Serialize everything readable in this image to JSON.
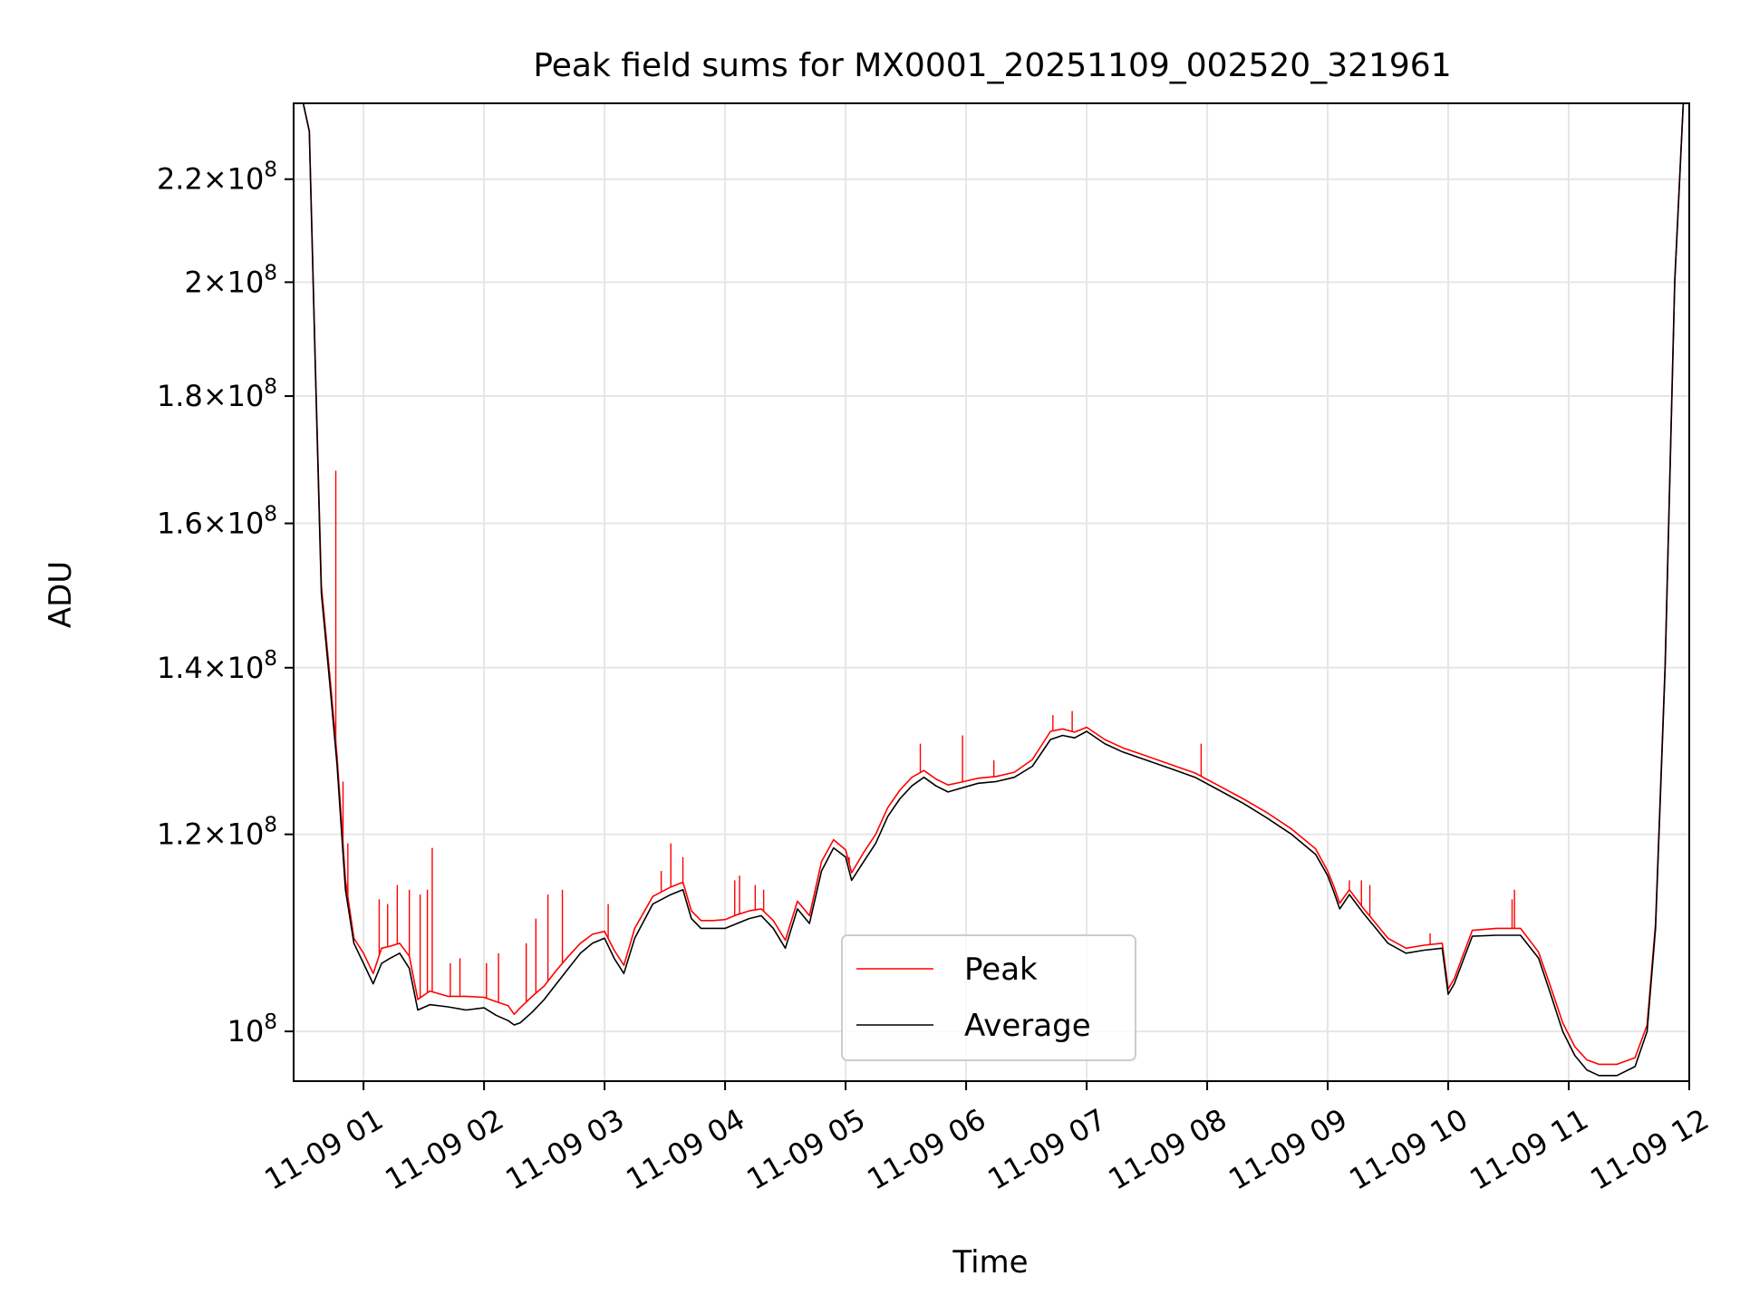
{
  "chart_data": {
    "type": "line",
    "title": "Peak field sums for MX0001_20251109_002520_321961",
    "xlabel": "Time",
    "ylabel": "ADU",
    "x_unit": "hours on 2025-11-09",
    "xlim": [
      0.42,
      12.0
    ],
    "ylim": [
      95500000,
      236000000
    ],
    "yscale": "log",
    "grid": true,
    "legend_position": "lower center",
    "x_ticks": [
      {
        "value": 1,
        "label": "11-09 01"
      },
      {
        "value": 2,
        "label": "11-09 02"
      },
      {
        "value": 3,
        "label": "11-09 03"
      },
      {
        "value": 4,
        "label": "11-09 04"
      },
      {
        "value": 5,
        "label": "11-09 05"
      },
      {
        "value": 6,
        "label": "11-09 06"
      },
      {
        "value": 7,
        "label": "11-09 07"
      },
      {
        "value": 8,
        "label": "11-09 08"
      },
      {
        "value": 9,
        "label": "11-09 09"
      },
      {
        "value": 10,
        "label": "11-09 10"
      },
      {
        "value": 11,
        "label": "11-09 11"
      },
      {
        "value": 12,
        "label": "11-09 12"
      }
    ],
    "y_ticks": [
      {
        "value": 100000000,
        "mantissa": "",
        "exponent": "8"
      },
      {
        "value": 120000000,
        "mantissa": "1.2",
        "exponent": "8"
      },
      {
        "value": 140000000,
        "mantissa": "1.4",
        "exponent": "8"
      },
      {
        "value": 160000000,
        "mantissa": "1.6",
        "exponent": "8"
      },
      {
        "value": 180000000,
        "mantissa": "1.8",
        "exponent": "8"
      },
      {
        "value": 200000000,
        "mantissa": "2",
        "exponent": "8"
      },
      {
        "value": 220000000,
        "mantissa": "2.2",
        "exponent": "8"
      }
    ],
    "tick_base": "10",
    "tick_times": "×",
    "series": [
      {
        "name": "Average",
        "color": "#000000",
        "points": [
          [
            0.42,
            236000000
          ],
          [
            0.5,
            236000000
          ],
          [
            0.55,
            230000000
          ],
          [
            0.6,
            185000000
          ],
          [
            0.65,
            150000000
          ],
          [
            0.72,
            138000000
          ],
          [
            0.78,
            128000000
          ],
          [
            0.85,
            114000000
          ],
          [
            0.92,
            108500000
          ],
          [
            1.0,
            106500000
          ],
          [
            1.08,
            104500000
          ],
          [
            1.15,
            106500000
          ],
          [
            1.22,
            107000000
          ],
          [
            1.3,
            107500000
          ],
          [
            1.38,
            106000000
          ],
          [
            1.45,
            102000000
          ],
          [
            1.55,
            102500000
          ],
          [
            1.7,
            102300000
          ],
          [
            1.85,
            102000000
          ],
          [
            2.0,
            102200000
          ],
          [
            2.1,
            101500000
          ],
          [
            2.2,
            101000000
          ],
          [
            2.25,
            100600000
          ],
          [
            2.3,
            100800000
          ],
          [
            2.4,
            101800000
          ],
          [
            2.5,
            103000000
          ],
          [
            2.6,
            104500000
          ],
          [
            2.7,
            106000000
          ],
          [
            2.8,
            107500000
          ],
          [
            2.9,
            108500000
          ],
          [
            3.0,
            109000000
          ],
          [
            3.08,
            107000000
          ],
          [
            3.16,
            105500000
          ],
          [
            3.25,
            109000000
          ],
          [
            3.4,
            112500000
          ],
          [
            3.55,
            113500000
          ],
          [
            3.65,
            114000000
          ],
          [
            3.72,
            111000000
          ],
          [
            3.8,
            110000000
          ],
          [
            3.9,
            110000000
          ],
          [
            4.0,
            110000000
          ],
          [
            4.1,
            110500000
          ],
          [
            4.2,
            111000000
          ],
          [
            4.3,
            111300000
          ],
          [
            4.4,
            110000000
          ],
          [
            4.5,
            108000000
          ],
          [
            4.6,
            112000000
          ],
          [
            4.7,
            110500000
          ],
          [
            4.8,
            116000000
          ],
          [
            4.9,
            118500000
          ],
          [
            5.0,
            117500000
          ],
          [
            5.05,
            115000000
          ],
          [
            5.15,
            117000000
          ],
          [
            5.25,
            119000000
          ],
          [
            5.35,
            122000000
          ],
          [
            5.45,
            124000000
          ],
          [
            5.55,
            125500000
          ],
          [
            5.65,
            126500000
          ],
          [
            5.75,
            125500000
          ],
          [
            5.85,
            124800000
          ],
          [
            5.95,
            125200000
          ],
          [
            6.1,
            125800000
          ],
          [
            6.25,
            126000000
          ],
          [
            6.4,
            126500000
          ],
          [
            6.55,
            127800000
          ],
          [
            6.7,
            131000000
          ],
          [
            6.8,
            131500000
          ],
          [
            6.9,
            131200000
          ],
          [
            7.0,
            132000000
          ],
          [
            7.15,
            130500000
          ],
          [
            7.3,
            129500000
          ],
          [
            7.5,
            128500000
          ],
          [
            7.7,
            127500000
          ],
          [
            7.9,
            126500000
          ],
          [
            8.1,
            125000000
          ],
          [
            8.3,
            123500000
          ],
          [
            8.5,
            121800000
          ],
          [
            8.7,
            120000000
          ],
          [
            8.9,
            117800000
          ],
          [
            9.0,
            115500000
          ],
          [
            9.05,
            113800000
          ],
          [
            9.1,
            112000000
          ],
          [
            9.18,
            113500000
          ],
          [
            9.3,
            111500000
          ],
          [
            9.4,
            110000000
          ],
          [
            9.5,
            108500000
          ],
          [
            9.65,
            107500000
          ],
          [
            9.8,
            107800000
          ],
          [
            9.95,
            108000000
          ],
          [
            10.0,
            103500000
          ],
          [
            10.05,
            104500000
          ],
          [
            10.2,
            109200000
          ],
          [
            10.4,
            109300000
          ],
          [
            10.6,
            109300000
          ],
          [
            10.75,
            107000000
          ],
          [
            10.85,
            103500000
          ],
          [
            10.95,
            100000000
          ],
          [
            11.05,
            97800000
          ],
          [
            11.15,
            96500000
          ],
          [
            11.25,
            96000000
          ],
          [
            11.4,
            96000000
          ],
          [
            11.55,
            96800000
          ],
          [
            11.65,
            100000000
          ],
          [
            11.72,
            110000000
          ],
          [
            11.8,
            140000000
          ],
          [
            11.88,
            200000000
          ],
          [
            11.95,
            236000000
          ],
          [
            12.0,
            236000000
          ]
        ]
      },
      {
        "name": "Peak",
        "color": "#ff0000",
        "points": [
          [
            0.42,
            236000000
          ],
          [
            0.5,
            236000000
          ],
          [
            0.55,
            230000000
          ],
          [
            0.6,
            186000000
          ],
          [
            0.65,
            151000000
          ],
          [
            0.72,
            139000000
          ],
          [
            0.78,
            129000000
          ],
          [
            0.85,
            115000000
          ],
          [
            0.92,
            109000000
          ],
          [
            1.0,
            107500000
          ],
          [
            1.08,
            105500000
          ],
          [
            1.15,
            108000000
          ],
          [
            1.22,
            108200000
          ],
          [
            1.3,
            108500000
          ],
          [
            1.38,
            107200000
          ],
          [
            1.45,
            103000000
          ],
          [
            1.55,
            103800000
          ],
          [
            1.7,
            103300000
          ],
          [
            1.85,
            103300000
          ],
          [
            2.0,
            103200000
          ],
          [
            2.1,
            102800000
          ],
          [
            2.2,
            102400000
          ],
          [
            2.25,
            101600000
          ],
          [
            2.3,
            102200000
          ],
          [
            2.4,
            103300000
          ],
          [
            2.5,
            104300000
          ],
          [
            2.6,
            105800000
          ],
          [
            2.7,
            107200000
          ],
          [
            2.8,
            108500000
          ],
          [
            2.9,
            109400000
          ],
          [
            3.0,
            109700000
          ],
          [
            3.08,
            107800000
          ],
          [
            3.16,
            106300000
          ],
          [
            3.25,
            110000000
          ],
          [
            3.4,
            113300000
          ],
          [
            3.55,
            114300000
          ],
          [
            3.65,
            114800000
          ],
          [
            3.72,
            111800000
          ],
          [
            3.8,
            110800000
          ],
          [
            3.9,
            110800000
          ],
          [
            4.0,
            110900000
          ],
          [
            4.1,
            111400000
          ],
          [
            4.2,
            111800000
          ],
          [
            4.3,
            112000000
          ],
          [
            4.4,
            110800000
          ],
          [
            4.5,
            108800000
          ],
          [
            4.6,
            112800000
          ],
          [
            4.7,
            111300000
          ],
          [
            4.8,
            117000000
          ],
          [
            4.9,
            119400000
          ],
          [
            5.0,
            118300000
          ],
          [
            5.05,
            115800000
          ],
          [
            5.15,
            118000000
          ],
          [
            5.25,
            120000000
          ],
          [
            5.35,
            123000000
          ],
          [
            5.45,
            125000000
          ],
          [
            5.55,
            126500000
          ],
          [
            5.65,
            127300000
          ],
          [
            5.75,
            126300000
          ],
          [
            5.85,
            125600000
          ],
          [
            5.95,
            125900000
          ],
          [
            6.1,
            126400000
          ],
          [
            6.25,
            126600000
          ],
          [
            6.4,
            127100000
          ],
          [
            6.55,
            128600000
          ],
          [
            6.7,
            132000000
          ],
          [
            6.8,
            132300000
          ],
          [
            6.9,
            131900000
          ],
          [
            7.0,
            132500000
          ],
          [
            7.15,
            131000000
          ],
          [
            7.3,
            130000000
          ],
          [
            7.5,
            129000000
          ],
          [
            7.7,
            128000000
          ],
          [
            7.9,
            127000000
          ],
          [
            8.1,
            125500000
          ],
          [
            8.3,
            124000000
          ],
          [
            8.5,
            122400000
          ],
          [
            8.7,
            120600000
          ],
          [
            8.9,
            118400000
          ],
          [
            9.0,
            116000000
          ],
          [
            9.05,
            114400000
          ],
          [
            9.1,
            112600000
          ],
          [
            9.18,
            114000000
          ],
          [
            9.3,
            112000000
          ],
          [
            9.4,
            110500000
          ],
          [
            9.5,
            109000000
          ],
          [
            9.65,
            108000000
          ],
          [
            9.8,
            108300000
          ],
          [
            9.95,
            108500000
          ],
          [
            10.0,
            104000000
          ],
          [
            10.05,
            105000000
          ],
          [
            10.2,
            109800000
          ],
          [
            10.4,
            110000000
          ],
          [
            10.6,
            110000000
          ],
          [
            10.75,
            107600000
          ],
          [
            10.85,
            104200000
          ],
          [
            10.95,
            100800000
          ],
          [
            11.05,
            98600000
          ],
          [
            11.15,
            97400000
          ],
          [
            11.25,
            97000000
          ],
          [
            11.4,
            97000000
          ],
          [
            11.55,
            97600000
          ],
          [
            11.65,
            100600000
          ],
          [
            11.72,
            110500000
          ],
          [
            11.8,
            140500000
          ],
          [
            11.88,
            200500000
          ],
          [
            11.95,
            236000000
          ],
          [
            12.0,
            236000000
          ]
        ],
        "spikes": [
          [
            0.77,
            168000000
          ],
          [
            0.83,
            126000000
          ],
          [
            0.87,
            119000000
          ],
          [
            1.13,
            113000000
          ],
          [
            1.2,
            112500000
          ],
          [
            1.28,
            114500000
          ],
          [
            1.38,
            114000000
          ],
          [
            1.47,
            113500000
          ],
          [
            1.53,
            114000000
          ],
          [
            1.57,
            118500000
          ],
          [
            1.72,
            106500000
          ],
          [
            1.8,
            107000000
          ],
          [
            2.02,
            106500000
          ],
          [
            2.12,
            107500000
          ],
          [
            2.35,
            108500000
          ],
          [
            2.43,
            111000000
          ],
          [
            2.53,
            113500000
          ],
          [
            2.65,
            114000000
          ],
          [
            3.03,
            112500000
          ],
          [
            3.47,
            116000000
          ],
          [
            3.55,
            119000000
          ],
          [
            3.65,
            117500000
          ],
          [
            4.08,
            115000000
          ],
          [
            4.12,
            115500000
          ],
          [
            4.25,
            114500000
          ],
          [
            4.32,
            114000000
          ],
          [
            5.03,
            117500000
          ],
          [
            5.62,
            130500000
          ],
          [
            5.97,
            131500000
          ],
          [
            6.23,
            128500000
          ],
          [
            6.72,
            134000000
          ],
          [
            6.88,
            134500000
          ],
          [
            7.95,
            130500000
          ],
          [
            9.18,
            115000000
          ],
          [
            9.28,
            115000000
          ],
          [
            9.35,
            114500000
          ],
          [
            9.85,
            109500000
          ],
          [
            10.53,
            113000000
          ],
          [
            10.55,
            114000000
          ]
        ]
      }
    ]
  }
}
